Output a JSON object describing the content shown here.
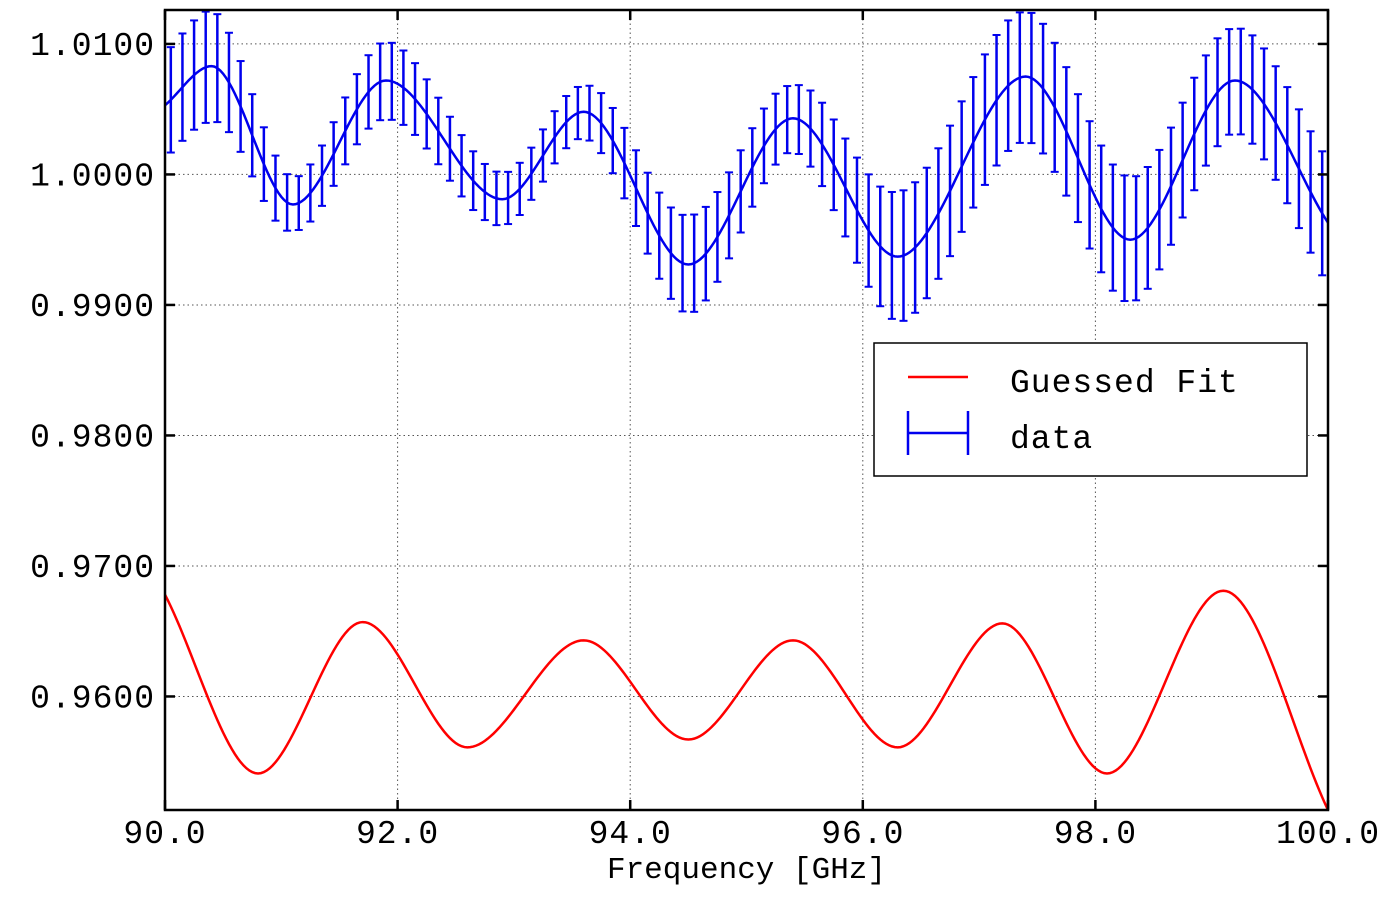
{
  "chart_data": {
    "type": "line",
    "title": "",
    "xlabel": "Frequency [GHz]",
    "ylabel": "",
    "xlim": [
      90.0,
      100.0
    ],
    "ylim": [
      0.9513,
      1.0126
    ],
    "grid": true,
    "grid_style": "dotted",
    "legend_position": "right",
    "x_tick_labels": [
      "90.0",
      "92.0",
      "94.0",
      "96.0",
      "98.0",
      "100.0"
    ],
    "x_ticks": [
      90.0,
      92.0,
      94.0,
      96.0,
      98.0,
      100.0
    ],
    "y_tick_labels": [
      "0.9600",
      "0.9700",
      "0.9800",
      "0.9900",
      "1.0000",
      "1.0100"
    ],
    "y_ticks": [
      0.96,
      0.97,
      0.98,
      0.99,
      1.0,
      1.01
    ],
    "colors": {
      "fit": "#ff0000",
      "data": "#0000ee"
    },
    "series": [
      {
        "name": "Guessed Fit",
        "kind": "line",
        "color": "#ff0000",
        "x": [
          90.0,
          90.8,
          91.7,
          92.6,
          93.6,
          94.5,
          95.4,
          96.3,
          97.2,
          98.1,
          99.1,
          100.0
        ],
        "y": [
          0.9678,
          0.9541,
          0.9657,
          0.9561,
          0.9643,
          0.9567,
          0.9643,
          0.9561,
          0.9656,
          0.9541,
          0.9681,
          0.9513
        ]
      },
      {
        "name": "data",
        "kind": "errorbar",
        "color": "#0000ee",
        "curve_x": [
          90.0,
          90.4,
          91.1,
          91.9,
          92.9,
          93.6,
          94.5,
          95.4,
          96.3,
          97.4,
          98.3,
          99.2,
          100.0
        ],
        "curve_y": [
          1.0053,
          1.0083,
          0.9977,
          1.0072,
          0.9981,
          1.0048,
          0.9931,
          1.0043,
          0.9937,
          1.0075,
          0.995,
          1.0072,
          0.9963
        ],
        "errors": {
          "x": [
            90.0,
            90.4,
            91.1,
            91.9,
            92.9,
            93.6,
            94.5,
            95.4,
            96.3,
            97.4,
            98.3,
            99.2,
            100.0
          ],
          "err": [
            0.004,
            0.0043,
            0.002,
            0.003,
            0.002,
            0.002,
            0.0038,
            0.0025,
            0.005,
            0.005,
            0.0048,
            0.004,
            0.0048
          ]
        },
        "n_errorbars": 100
      }
    ]
  }
}
